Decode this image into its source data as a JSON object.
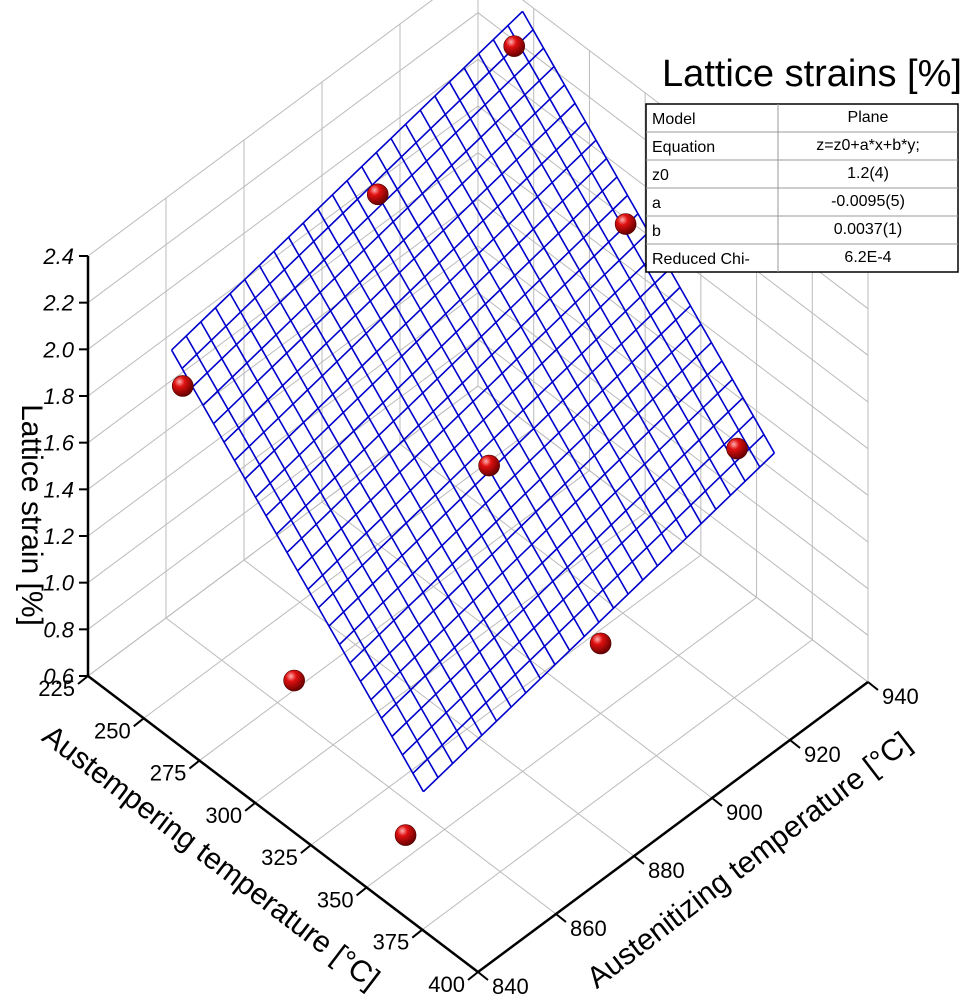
{
  "chart_data": {
    "type": "surface3d",
    "title": "Lattice strains [%]",
    "xlabel": "Austempering temperature [°C]",
    "ylabel": "Austenitizing temperature [°C]",
    "zlabel": "Lattice strain [%]",
    "x_ticks": [
      "225",
      "250",
      "275",
      "300",
      "325",
      "350",
      "375",
      "400"
    ],
    "y_ticks": [
      "840",
      "860",
      "880",
      "900",
      "920",
      "940"
    ],
    "z_ticks": [
      "0.6",
      "0.8",
      "1.0",
      "1.2",
      "1.4",
      "1.6",
      "1.8",
      "2.0",
      "2.2",
      "2.4"
    ],
    "xlim": [
      225,
      400
    ],
    "ylim": [
      840,
      940
    ],
    "zlim": [
      0.6,
      2.4
    ],
    "grid": true,
    "fit_model": {
      "z0": 1.2,
      "a": -0.0095,
      "b": 0.0037
    },
    "points": [
      {
        "x": 250,
        "y": 850,
        "z": 1.9
      },
      {
        "x": 250,
        "y": 900,
        "z": 2.1
      },
      {
        "x": 250,
        "y": 935,
        "z": 2.3
      },
      {
        "x": 300,
        "y": 850,
        "z": 1.0
      },
      {
        "x": 300,
        "y": 900,
        "z": 1.3
      },
      {
        "x": 300,
        "y": 935,
        "z": 1.9
      },
      {
        "x": 350,
        "y": 850,
        "z": 0.7
      },
      {
        "x": 350,
        "y": 900,
        "z": 0.9
      },
      {
        "x": 350,
        "y": 935,
        "z": 1.3
      }
    ]
  },
  "fit_table": {
    "rows": [
      [
        "Model",
        "Plane"
      ],
      [
        "Equation",
        "z=z0+a*x+b*y;"
      ],
      [
        "z0",
        "1.2(4)"
      ],
      [
        "a",
        "-0.0095(5)"
      ],
      [
        "b",
        "0.0037(1)"
      ],
      [
        "Reduced Chi-",
        "6.2E-4"
      ]
    ]
  },
  "colors": {
    "mesh": "#0000cc",
    "point": "#cc0000",
    "grid": "#bbbbbb"
  }
}
